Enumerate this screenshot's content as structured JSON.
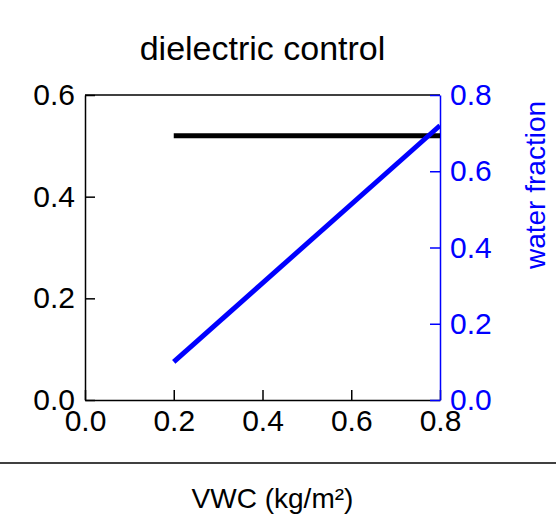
{
  "chart_data": {
    "type": "line",
    "title": "dielectric control",
    "x_label": "VWC (kg/m²)",
    "y2_label": "water fraction",
    "x": [
      0.2,
      0.8
    ],
    "xlim": [
      0,
      0.8
    ],
    "xticks": [
      {
        "value": 0,
        "label": "0.0"
      },
      0.2,
      0.4,
      0.6,
      0.8
    ],
    "ylim": [
      0,
      0.6
    ],
    "yticks": [
      {
        "value": 0,
        "label": "0.0"
      },
      0.2,
      0.4,
      0.6
    ],
    "y2lim": [
      0,
      0.8
    ],
    "y2ticks": [
      {
        "value": 0,
        "label": "0.0"
      },
      0.2,
      0.4,
      0.6,
      0.8
    ],
    "series": [
      {
        "color": "#000000",
        "values": [
          0.52,
          0.52
        ]
      },
      {
        "color": "#0000ff",
        "values": [
          0.1,
          0.72
        ],
        "axis": "y2"
      }
    ]
  }
}
